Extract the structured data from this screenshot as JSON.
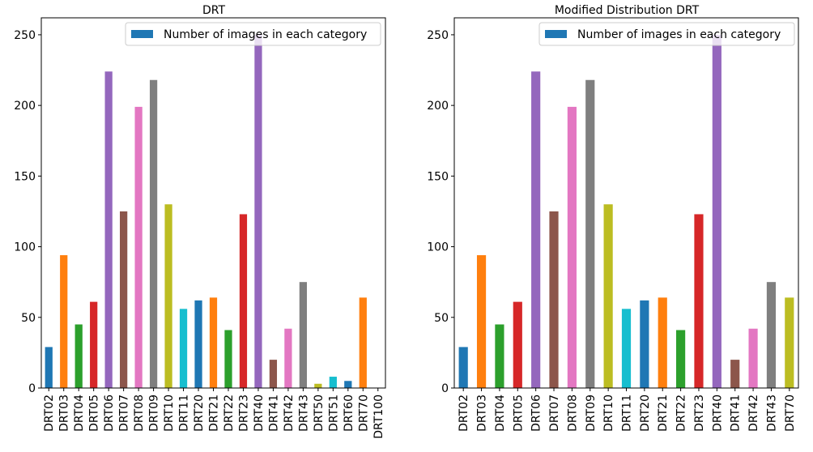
{
  "chart_data": [
    {
      "type": "bar",
      "title": "DRT",
      "xlabel": "",
      "ylabel": "",
      "ylim": [
        0,
        262
      ],
      "yticks": [
        0,
        50,
        100,
        150,
        200,
        250
      ],
      "grid": false,
      "legend": {
        "placement": "top-right",
        "entries": [
          "Number of images in each category"
        ]
      },
      "categories": [
        "DRT02",
        "DRT03",
        "DRT04",
        "DRT05",
        "DRT06",
        "DRT07",
        "DRT08",
        "DRT09",
        "DRT10",
        "DRT11",
        "DRT20",
        "DRT21",
        "DRT22",
        "DRT23",
        "DRT40",
        "DRT41",
        "DRT42",
        "DRT43",
        "DRT50",
        "DRT51",
        "DRT60",
        "DRT70",
        "DRT100"
      ],
      "series": [
        {
          "name": "Number of images in each category",
          "values": [
            29,
            94,
            45,
            61,
            224,
            125,
            199,
            218,
            130,
            56,
            62,
            64,
            41,
            123,
            250,
            20,
            42,
            75,
            3,
            8,
            5,
            64,
            0
          ]
        }
      ],
      "colors": [
        "#1f77b4",
        "#ff7f0e",
        "#2ca02c",
        "#d62728",
        "#9467bd",
        "#8c564b",
        "#e377c2",
        "#7f7f7f",
        "#bcbd22",
        "#17becf"
      ]
    },
    {
      "type": "bar",
      "title": "Modified Distribution DRT",
      "xlabel": "",
      "ylabel": "",
      "ylim": [
        0,
        262
      ],
      "yticks": [
        0,
        50,
        100,
        150,
        200,
        250
      ],
      "grid": false,
      "legend": {
        "placement": "top-right",
        "entries": [
          "Number of images in each category"
        ]
      },
      "categories": [
        "DRT02",
        "DRT03",
        "DRT04",
        "DRT05",
        "DRT06",
        "DRT07",
        "DRT08",
        "DRT09",
        "DRT10",
        "DRT11",
        "DRT20",
        "DRT21",
        "DRT22",
        "DRT23",
        "DRT40",
        "DRT41",
        "DRT42",
        "DRT43",
        "DRT70"
      ],
      "series": [
        {
          "name": "Number of images in each category",
          "values": [
            29,
            94,
            45,
            61,
            224,
            125,
            199,
            218,
            130,
            56,
            62,
            64,
            41,
            123,
            250,
            20,
            42,
            75,
            64
          ]
        }
      ],
      "colors": [
        "#1f77b4",
        "#ff7f0e",
        "#2ca02c",
        "#d62728",
        "#9467bd",
        "#8c564b",
        "#e377c2",
        "#7f7f7f",
        "#bcbd22",
        "#17becf"
      ]
    }
  ]
}
